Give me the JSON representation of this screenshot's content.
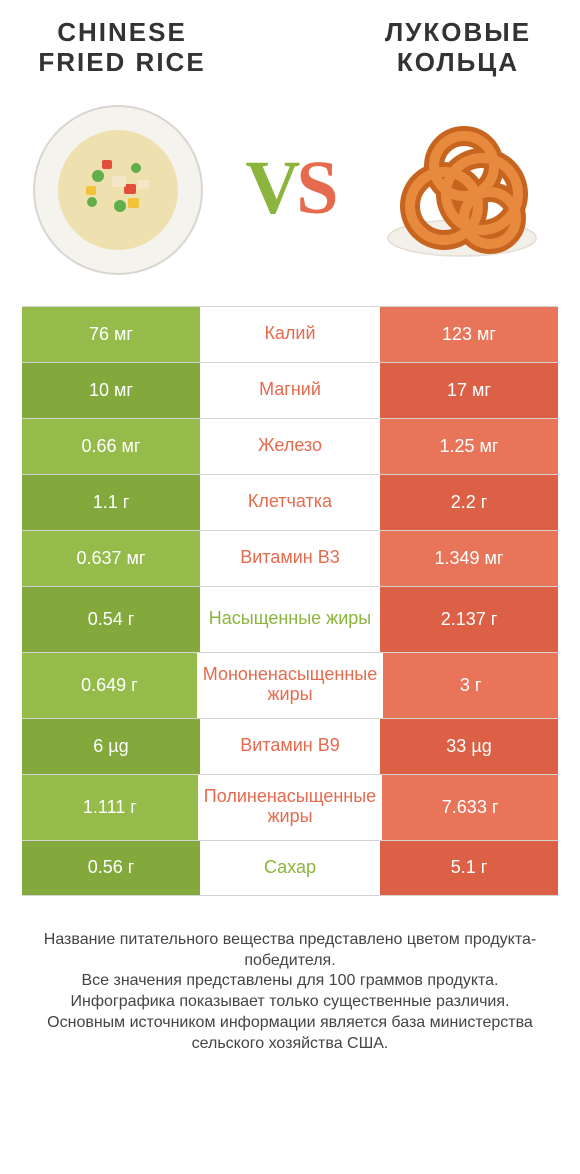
{
  "colors": {
    "green": "#8bb53d",
    "greenL": "#95bb4a",
    "greenD": "#83a93c",
    "orange": "#e66a4e",
    "orangeL": "#e8755a",
    "orangeD": "#dc6045",
    "sep": "#d4d4d4"
  },
  "food_left": {
    "title": "CHINESE FRIED RICE"
  },
  "food_right": {
    "title": "ЛУКОВЫЕ КОЛЬЦА"
  },
  "vs": {
    "v": "V",
    "s": "S"
  },
  "rows": [
    {
      "left": "76 мг",
      "label": "Калий",
      "right": "123 мг",
      "winner": "right",
      "tall": false
    },
    {
      "left": "10 мг",
      "label": "Магний",
      "right": "17 мг",
      "winner": "right",
      "tall": false
    },
    {
      "left": "0.66 мг",
      "label": "Железо",
      "right": "1.25 мг",
      "winner": "right",
      "tall": false
    },
    {
      "left": "1.1 г",
      "label": "Клетчатка",
      "right": "2.2 г",
      "winner": "right",
      "tall": false
    },
    {
      "left": "0.637 мг",
      "label": "Витамин B3",
      "right": "1.349 мг",
      "winner": "right",
      "tall": false
    },
    {
      "left": "0.54 г",
      "label": "Насыщенные жиры",
      "right": "2.137 г",
      "winner": "left",
      "tall": true
    },
    {
      "left": "0.649 г",
      "label": "Мононенасыщенные жиры",
      "right": "3 г",
      "winner": "right",
      "tall": true
    },
    {
      "left": "6 µg",
      "label": "Витамин B9",
      "right": "33 µg",
      "winner": "right",
      "tall": false
    },
    {
      "left": "1.111 г",
      "label": "Полиненасыщенные жиры",
      "right": "7.633 г",
      "winner": "right",
      "tall": true
    },
    {
      "left": "0.56 г",
      "label": "Сахар",
      "right": "5.1 г",
      "winner": "left",
      "tall": false
    }
  ],
  "footer": {
    "l1": "Название питательного вещества представлено цветом продукта-победителя.",
    "l2": "Все значения представлены для 100 граммов продукта.",
    "l3": "Инфографика показывает только существенные различия.",
    "l4": "Основным источником информации является база министерства сельского хозяйства США."
  }
}
